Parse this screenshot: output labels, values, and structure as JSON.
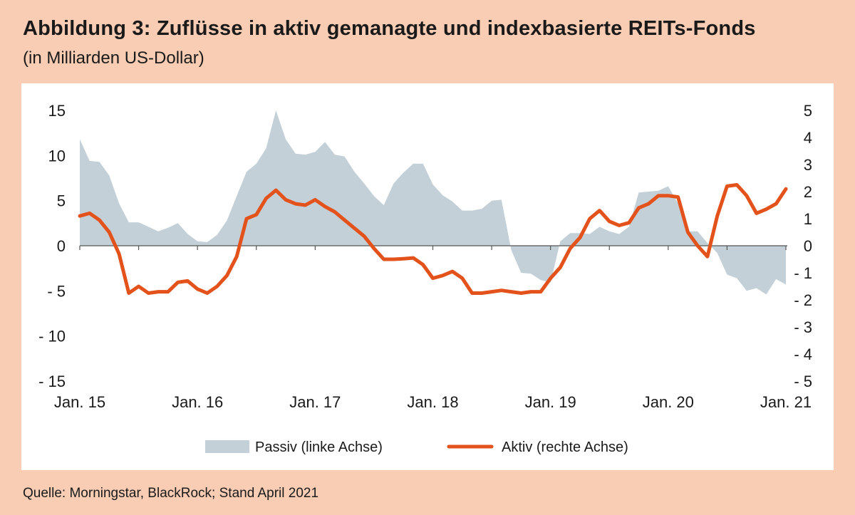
{
  "header": {
    "title": "Abbildung 3: Zuflüsse in aktiv gemanagte und indexbasierte REITs-Fonds",
    "subtitle": "(in Milliarden US-Dollar)"
  },
  "footer": {
    "source": "Quelle: Morningstar, BlackRock; Stand April 2021"
  },
  "colors": {
    "background": "#f9cdb4",
    "panel": "#ffffff",
    "passiv_fill": "#c3d0d8",
    "aktiv_line": "#e4521c",
    "axis": "#555555"
  },
  "chart_data": {
    "type": "area",
    "title": "Abbildung 3: Zuflüsse in aktiv gemanagte und indexbasierte REITs-Fonds",
    "subtitle": "(in Milliarden US-Dollar)",
    "x_tick_labels": [
      "Jan. 15",
      "Jan. 16",
      "Jan. 17",
      "Jan. 18",
      "Jan. 19",
      "Jan. 20",
      "Jan. 21"
    ],
    "x_tick_months": [
      0,
      12,
      24,
      36,
      48,
      60,
      72
    ],
    "left_axis": {
      "ylim": [
        -15,
        15
      ],
      "ticks": [
        15,
        10,
        5,
        0,
        -5,
        -10,
        -15
      ],
      "tick_labels": [
        "15",
        "10",
        "5",
        "0",
        "- 5",
        "- 10",
        "- 15"
      ]
    },
    "right_axis": {
      "ylim": [
        -5,
        5
      ],
      "ticks": [
        5,
        4,
        3,
        2,
        1,
        0,
        -1,
        -2,
        -3,
        -4,
        -5
      ],
      "tick_labels": [
        "5",
        "4",
        "3",
        "2",
        "1",
        "0",
        "- 1",
        "- 2",
        "- 3",
        "- 4",
        "- 5"
      ]
    },
    "grid": false,
    "legend_position": "bottom",
    "series": [
      {
        "name": "Passiv (linke Achse)",
        "type": "area",
        "axis": "left",
        "color": "#c3d0d8",
        "x_months": [
          0,
          1,
          2,
          3,
          4,
          5,
          6,
          7,
          8,
          9,
          10,
          11,
          12,
          13,
          14,
          15,
          16,
          17,
          18,
          19,
          20,
          21,
          22,
          23,
          24,
          25,
          26,
          27,
          28,
          29,
          30,
          31,
          32,
          33,
          34,
          35,
          36,
          37,
          38,
          39,
          40,
          41,
          42,
          43,
          44,
          45,
          46,
          47,
          48,
          49,
          50,
          51,
          52,
          53,
          54,
          55,
          56,
          57,
          58,
          59,
          60,
          61,
          62,
          63,
          64,
          65,
          66,
          67,
          68,
          69,
          70,
          71,
          72
        ],
        "values": [
          11.8,
          9.4,
          9.3,
          7.8,
          4.7,
          2.6,
          2.6,
          2.1,
          1.6,
          2.0,
          2.5,
          1.3,
          0.5,
          0.4,
          1.2,
          2.8,
          5.5,
          8.2,
          9.1,
          10.8,
          15.0,
          11.8,
          10.2,
          10.1,
          10.4,
          11.5,
          10.1,
          9.9,
          8.2,
          6.9,
          5.5,
          4.5,
          6.9,
          8.1,
          9.1,
          9.1,
          6.8,
          5.6,
          4.9,
          3.9,
          3.9,
          4.1,
          5.0,
          5.1,
          -0.5,
          -3.0,
          -3.1,
          -3.8,
          -4.1,
          0.5,
          1.4,
          1.4,
          1.3,
          2.1,
          1.6,
          1.3,
          2.1,
          5.9,
          6.0,
          6.1,
          6.6,
          4.7,
          1.6,
          1.6,
          0.3,
          -0.8,
          -3.2,
          -3.6,
          -5.0,
          -4.7,
          -5.4,
          -3.7,
          -4.3
        ]
      },
      {
        "name": "Aktiv (rechte Achse)",
        "type": "line",
        "axis": "right",
        "color": "#e4521c",
        "x_months": [
          0,
          1,
          2,
          3,
          4,
          5,
          6,
          7,
          8,
          9,
          10,
          11,
          12,
          13,
          14,
          15,
          16,
          17,
          18,
          19,
          20,
          21,
          22,
          23,
          24,
          25,
          26,
          27,
          28,
          29,
          30,
          31,
          32,
          33,
          34,
          35,
          36,
          37,
          38,
          39,
          40,
          41,
          42,
          43,
          44,
          45,
          46,
          47,
          48,
          49,
          50,
          51,
          52,
          53,
          54,
          55,
          56,
          57,
          58,
          59,
          60,
          61,
          62,
          63,
          64,
          65,
          66,
          67,
          68,
          69,
          70,
          71,
          72
        ],
        "values": [
          1.1,
          1.2,
          0.95,
          0.5,
          -0.3,
          -1.75,
          -1.5,
          -1.75,
          -1.7,
          -1.7,
          -1.35,
          -1.3,
          -1.6,
          -1.75,
          -1.5,
          -1.1,
          -0.4,
          1.0,
          1.15,
          1.75,
          2.05,
          1.7,
          1.55,
          1.5,
          1.7,
          1.45,
          1.25,
          0.95,
          0.65,
          0.35,
          -0.1,
          -0.5,
          -0.5,
          -0.48,
          -0.45,
          -0.7,
          -1.2,
          -1.1,
          -0.95,
          -1.2,
          -1.75,
          -1.75,
          -1.7,
          -1.65,
          -1.7,
          -1.75,
          -1.7,
          -1.7,
          -1.2,
          -0.8,
          -0.1,
          0.3,
          1.0,
          1.3,
          0.9,
          0.75,
          0.85,
          1.4,
          1.55,
          1.85,
          1.85,
          1.8,
          0.5,
          0.0,
          -0.4,
          1.1,
          2.2,
          2.25,
          1.85,
          1.2,
          1.35,
          1.55,
          2.1
        ]
      }
    ]
  }
}
